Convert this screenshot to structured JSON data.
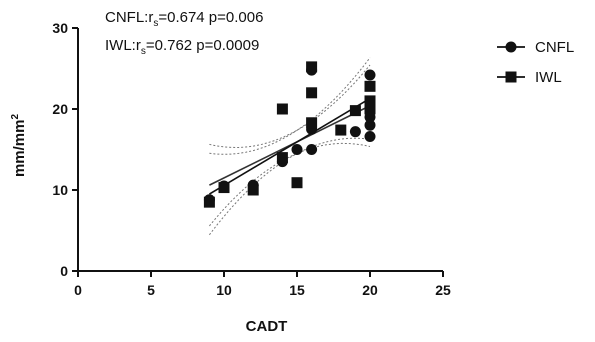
{
  "chart_data": {
    "type": "scatter",
    "xlabel": "CADT",
    "ylabel": "mm/mm",
    "ylabel_sup": "2",
    "xlim": [
      0,
      25
    ],
    "ylim": [
      0,
      30
    ],
    "xticks": [
      "0",
      "5",
      "10",
      "15",
      "20",
      "25"
    ],
    "yticks": [
      "0",
      "10",
      "20",
      "30"
    ],
    "grid": false,
    "legend_placement": "right",
    "annotations": [
      {
        "prefix": "CNFL:r",
        "sub": "s",
        "rest": "=0.674 p=0.006"
      },
      {
        "prefix": "IWL:r",
        "sub": "s",
        "rest": "=0.762 p=0.0009"
      }
    ],
    "series": [
      {
        "name": "CNFL",
        "marker": "circle",
        "color": "#111111",
        "points": [
          [
            9,
            8.8
          ],
          [
            10,
            10.5
          ],
          [
            12,
            10.6
          ],
          [
            14,
            13.5
          ],
          [
            15,
            15
          ],
          [
            16,
            15
          ],
          [
            16,
            24.8
          ],
          [
            16,
            17.5
          ],
          [
            19,
            17.2
          ],
          [
            20,
            24.2
          ],
          [
            20,
            18
          ],
          [
            20,
            16.6
          ],
          [
            20,
            19
          ]
        ],
        "fit": [
          [
            9,
            10.6
          ],
          [
            20,
            20.4
          ]
        ]
      },
      {
        "name": "IWL",
        "marker": "square",
        "color": "#111111",
        "points": [
          [
            9,
            8.5
          ],
          [
            10,
            10.3
          ],
          [
            12,
            10
          ],
          [
            14,
            20
          ],
          [
            14,
            14
          ],
          [
            15,
            10.9
          ],
          [
            16,
            22
          ],
          [
            16,
            25.2
          ],
          [
            16,
            18.3
          ],
          [
            18,
            17.4
          ],
          [
            19,
            19.8
          ],
          [
            20,
            22.8
          ],
          [
            20,
            21
          ],
          [
            20,
            20
          ]
        ],
        "fit": [
          [
            9,
            9.5
          ],
          [
            20,
            21.3
          ]
        ]
      }
    ]
  }
}
